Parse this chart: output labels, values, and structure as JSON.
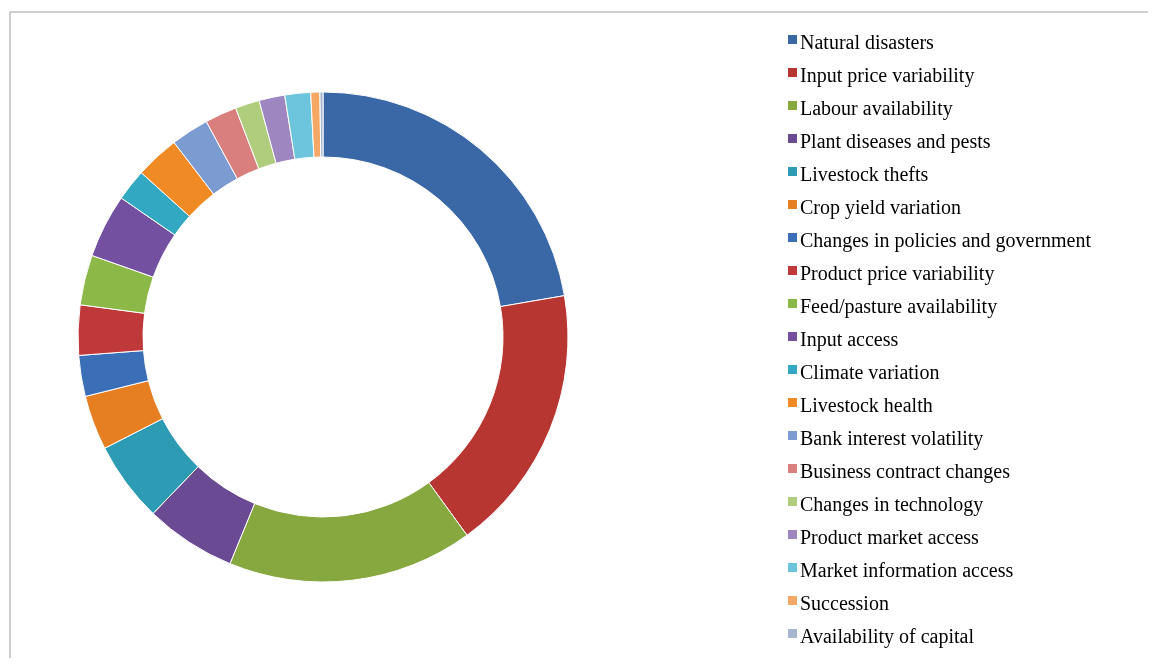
{
  "chart_data": {
    "type": "donut",
    "legend": "right",
    "categories": [
      "Natural disasters",
      "Input price variability",
      "Labour availability",
      "Plant diseases and pests",
      "Livestock thefts",
      "Crop yield variation",
      "Changes in policies and government",
      "Product price variability",
      "Feed/pasture availability",
      "Input access",
      "Climate variation",
      "Livestock health",
      "Bank interest volatility",
      "Business contract changes",
      "Changes in technology",
      "Product market access",
      "Market information access",
      "Succession",
      "Availability of capital"
    ],
    "values": [
      22.3,
      17.7,
      16.2,
      6,
      5.3,
      3.6,
      2.7,
      3.3,
      3.3,
      4.2,
      2.1,
      2.9,
      2.5,
      2.1,
      1.6,
      1.7,
      1.7,
      0.6,
      0.2
    ],
    "colors": [
      "#3a67a6",
      "#b83632",
      "#86a83f",
      "#6a4a92",
      "#2e9bb5",
      "#e67e22",
      "#3a6fb8",
      "#c0393a",
      "#8cb848",
      "#7350a0",
      "#32a8c2",
      "#f08a24",
      "#7b9bd1",
      "#d9807f",
      "#b0cd7e",
      "#9e86c0",
      "#6cc5dc",
      "#f5a865",
      "#a6b6cf"
    ]
  }
}
